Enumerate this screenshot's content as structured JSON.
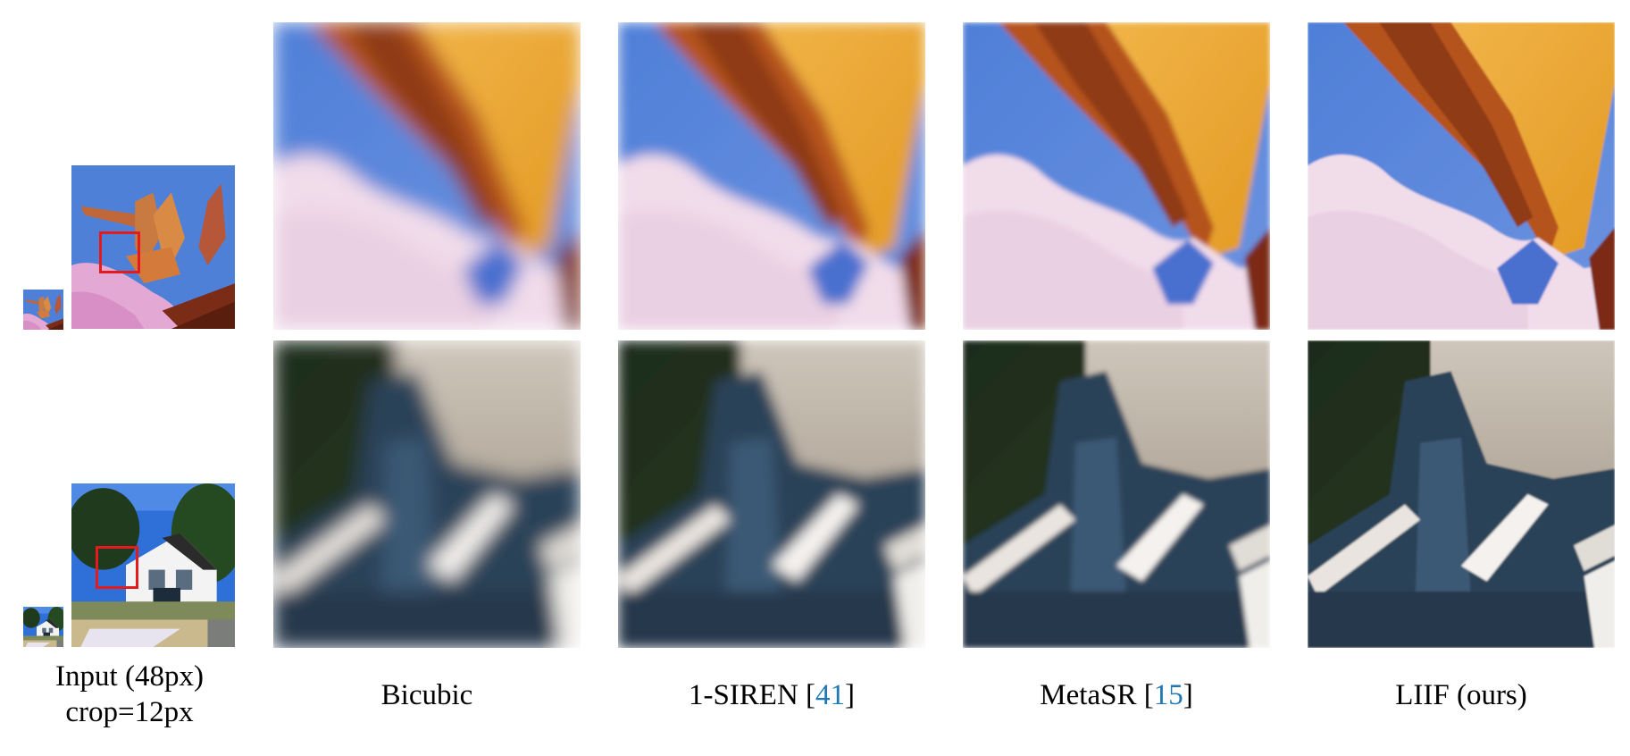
{
  "figure": {
    "columns": [
      {
        "id": "input",
        "caption_line1": "Input (48px)",
        "caption_line2": "crop=12px"
      },
      {
        "id": "bicubic",
        "caption": "Bicubic"
      },
      {
        "id": "siren",
        "caption_prefix": "1-SIREN [",
        "citation": "41",
        "caption_suffix": "]"
      },
      {
        "id": "metasr",
        "caption_prefix": "MetaSR [",
        "citation": "15",
        "caption_suffix": "]"
      },
      {
        "id": "liif",
        "caption": "LIIF (ours)"
      }
    ],
    "rows": [
      {
        "id": "flower",
        "subject": "pink flower with orange leaves against blue sky"
      },
      {
        "id": "house",
        "subject": "white house with trees"
      }
    ],
    "colors": {
      "crop_box": "#e41a1c",
      "citation": "#1f77b4"
    }
  }
}
